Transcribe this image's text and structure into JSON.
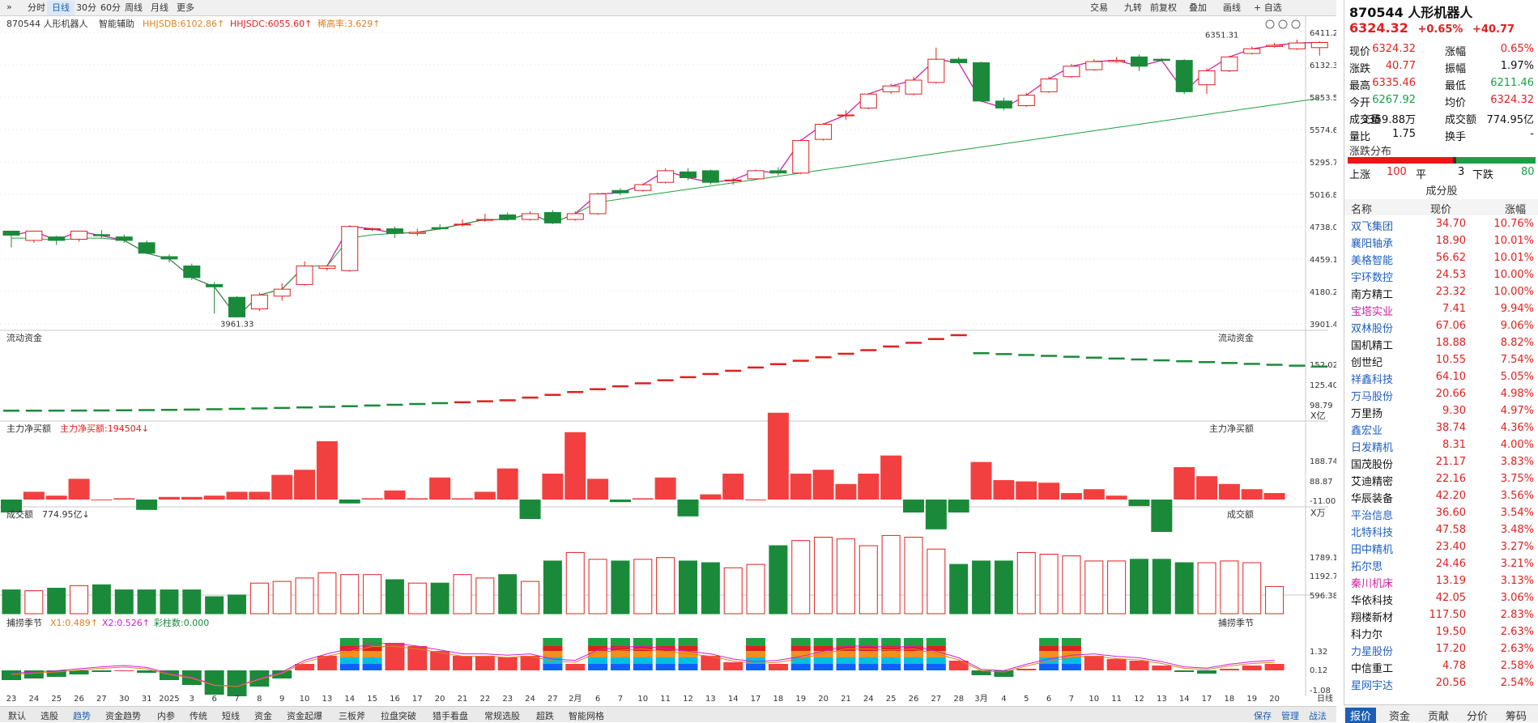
{
  "toolbar": {
    "collapse": "»",
    "left_buttons": [
      "分时",
      "日线",
      "30分",
      "60分",
      "周线",
      "月线",
      "更多"
    ],
    "right_buttons": [
      "交易",
      "九转",
      "前复权",
      "叠加",
      "画线",
      "+ 自选"
    ]
  },
  "main_legend": {
    "name": "870544 人形机器人",
    "assist": "智能辅助",
    "hhjsdb": "HHJSDB:6102.86↑",
    "hhjsdc": "HHJSDC:6055.60↑",
    "rate": "稀高率:3.629↑"
  },
  "main_axis": [
    "6411.24",
    "6132.37",
    "5853.50",
    "5574.63",
    "5295.76",
    "5016.88",
    "4738.01",
    "4459.14",
    "4180.27",
    "3901.40"
  ],
  "annotations": {
    "high": "6351.31",
    "low": "3961.33"
  },
  "panels": {
    "flow": {
      "title": "流动资金",
      "right_title": "流动资金",
      "axis": [
        "152.02",
        "125.40",
        "98.79"
      ],
      "unit": "X亿"
    },
    "net": {
      "title": "主力净买额",
      "legend": "主力净买额:194504↓",
      "right_title": "主力净买额",
      "axis": [
        "188.74",
        "88.87",
        "-11.00"
      ],
      "unit": "X万"
    },
    "vol": {
      "title": "成交额",
      "legend": "774.95亿↓",
      "right_title": "成交额",
      "axis": [
        "1789.15",
        "1192.77",
        "596.38"
      ]
    },
    "season": {
      "title": "捕捞季节",
      "x1": "X1:0.489↑",
      "x2": "X2:0.526↑",
      "bars": "彩柱数:0.000",
      "right_title": "捕捞季节",
      "axis": [
        "1.32",
        "0.12",
        "-1.08"
      ]
    }
  },
  "xaxis": [
    "23",
    "24",
    "25",
    "26",
    "27",
    "30",
    "31",
    "2025",
    "3",
    "6",
    "7",
    "8",
    "9",
    "10",
    "13",
    "14",
    "15",
    "16",
    "17",
    "20",
    "21",
    "22",
    "23",
    "24",
    "27",
    "2月",
    "6",
    "7",
    "10",
    "11",
    "12",
    "13",
    "14",
    "17",
    "18",
    "19",
    "20",
    "21",
    "24",
    "25",
    "26",
    "27",
    "28",
    "3月",
    "4",
    "5",
    "6",
    "7",
    "10",
    "11",
    "12",
    "13",
    "14",
    "17",
    "18",
    "19",
    "20",
    "日线"
  ],
  "chart_data": {
    "type": "candlestick",
    "candles": [
      [
        4700,
        4665,
        4680,
        4560
      ],
      [
        4620,
        4700,
        4660,
        4600
      ],
      [
        4650,
        4620,
        4660,
        4580
      ],
      [
        4630,
        4700,
        4660,
        4610
      ],
      [
        4670,
        4660,
        4710,
        4640
      ],
      [
        4650,
        4620,
        4670,
        4600
      ],
      [
        4600,
        4510,
        4620,
        4500
      ],
      [
        4480,
        4460,
        4500,
        4430
      ],
      [
        4400,
        4300,
        4420,
        4280
      ],
      [
        4240,
        4220,
        4260,
        3990
      ],
      [
        4130,
        3961,
        4140,
        3960
      ],
      [
        4030,
        4150,
        4170,
        4010
      ],
      [
        4140,
        4200,
        4250,
        4100
      ],
      [
        4240,
        4400,
        4440,
        4230
      ],
      [
        4380,
        4400,
        4410,
        4360
      ],
      [
        4360,
        4740,
        4750,
        4350
      ],
      [
        4720,
        4720,
        4730,
        4700
      ],
      [
        4720,
        4680,
        4740,
        4640
      ],
      [
        4680,
        4690,
        4720,
        4660
      ],
      [
        4730,
        4720,
        4760,
        4710
      ],
      [
        4760,
        4760,
        4800,
        4740
      ],
      [
        4800,
        4800,
        4850,
        4780
      ],
      [
        4840,
        4800,
        4860,
        4790
      ],
      [
        4800,
        4850,
        4870,
        4790
      ],
      [
        4860,
        4770,
        4880,
        4760
      ],
      [
        4800,
        4850,
        4870,
        4790
      ],
      [
        4850,
        5020,
        5030,
        4840
      ],
      [
        5050,
        5030,
        5070,
        5010
      ],
      [
        5050,
        5100,
        5110,
        5040
      ],
      [
        5120,
        5220,
        5240,
        5110
      ],
      [
        5210,
        5160,
        5240,
        5140
      ],
      [
        5220,
        5120,
        5230,
        5100
      ],
      [
        5140,
        5140,
        5160,
        5100
      ],
      [
        5150,
        5220,
        5230,
        5140
      ],
      [
        5220,
        5200,
        5250,
        5180
      ],
      [
        5200,
        5480,
        5490,
        5190
      ],
      [
        5490,
        5620,
        5630,
        5480
      ],
      [
        5700,
        5700,
        5740,
        5660
      ],
      [
        5760,
        5880,
        5890,
        5750
      ],
      [
        5900,
        5950,
        5970,
        5880
      ],
      [
        5880,
        6000,
        6030,
        5870
      ],
      [
        5980,
        6180,
        6280,
        5970
      ],
      [
        6180,
        6150,
        6200,
        6140
      ],
      [
        6150,
        5820,
        6160,
        5810
      ],
      [
        5820,
        5760,
        5850,
        5740
      ],
      [
        5780,
        5870,
        5890,
        5770
      ],
      [
        5900,
        6010,
        6030,
        5890
      ],
      [
        6030,
        6120,
        6140,
        6020
      ],
      [
        6090,
        6160,
        6180,
        6080
      ],
      [
        6160,
        6170,
        6200,
        6150
      ],
      [
        6200,
        6120,
        6220,
        6080
      ],
      [
        6180,
        6170,
        6190,
        6160
      ],
      [
        6170,
        5900,
        6180,
        5880
      ],
      [
        5960,
        6080,
        6100,
        5880
      ],
      [
        6080,
        6200,
        6210,
        6070
      ],
      [
        6230,
        6270,
        6290,
        6220
      ],
      [
        6290,
        6300,
        6320,
        6280
      ],
      [
        6270,
        6320,
        6350,
        6260
      ],
      [
        6280,
        6324,
        6336,
        6211
      ]
    ]
  },
  "right": {
    "title": "870544 人形机器人",
    "price": "6324.32",
    "change_pct": "+0.65%",
    "change": "+40.77",
    "stats": [
      [
        "现价",
        "6324.32",
        "red",
        "涨幅",
        "0.65%",
        "red"
      ],
      [
        "涨跌",
        "40.77",
        "red",
        "振幅",
        "1.97%",
        "blk"
      ],
      [
        "最高",
        "6335.46",
        "red",
        "最低",
        "6211.46",
        "grn"
      ],
      [
        "今开",
        "6267.92",
        "grn",
        "均价",
        "6324.32",
        "red"
      ],
      [
        "成交量",
        "3359.88万",
        "blk",
        "成交额",
        "774.95亿",
        "blk"
      ],
      [
        "量比",
        "1.75",
        "blk",
        "换手",
        "-",
        "blk"
      ]
    ],
    "dist_title": "涨跌分布",
    "dist": {
      "up_label": "上涨",
      "up": "100",
      "flat_label": "平",
      "flat": "3",
      "down_label": "下跌",
      "down": "80"
    },
    "comp_title": "成分股",
    "comp_headers": [
      "名称",
      "现价",
      "涨幅"
    ],
    "components": [
      [
        "双飞集团",
        "34.70",
        "10.76%",
        "blu"
      ],
      [
        "襄阳轴承",
        "18.90",
        "10.01%",
        "blu"
      ],
      [
        "美格智能",
        "56.62",
        "10.01%",
        "blu"
      ],
      [
        "宇环数控",
        "24.53",
        "10.00%",
        "blu"
      ],
      [
        "南方精工",
        "23.32",
        "10.00%",
        "blk"
      ],
      [
        "宝塔实业",
        "7.41",
        "9.94%",
        "mag"
      ],
      [
        "双林股份",
        "67.06",
        "9.06%",
        "blu"
      ],
      [
        "国机精工",
        "18.88",
        "8.82%",
        "blk"
      ],
      [
        "创世纪",
        "10.55",
        "7.54%",
        "blk"
      ],
      [
        "祥鑫科技",
        "64.10",
        "5.05%",
        "blu"
      ],
      [
        "万马股份",
        "20.66",
        "4.98%",
        "blu"
      ],
      [
        "万里扬",
        "9.30",
        "4.97%",
        "blk"
      ],
      [
        "鑫宏业",
        "38.74",
        "4.36%",
        "blu"
      ],
      [
        "日发精机",
        "8.31",
        "4.00%",
        "blu"
      ],
      [
        "国茂股份",
        "21.17",
        "3.83%",
        "blk"
      ],
      [
        "艾迪精密",
        "22.16",
        "3.75%",
        "blk"
      ],
      [
        "华辰装备",
        "42.20",
        "3.56%",
        "blk"
      ],
      [
        "平治信息",
        "36.60",
        "3.54%",
        "blu"
      ],
      [
        "北特科技",
        "47.58",
        "3.48%",
        "blu"
      ],
      [
        "田中精机",
        "23.40",
        "3.27%",
        "blu"
      ],
      [
        "拓尔思",
        "24.46",
        "3.21%",
        "blu"
      ],
      [
        "秦川机床",
        "13.19",
        "3.13%",
        "mag"
      ],
      [
        "华依科技",
        "42.05",
        "3.06%",
        "blk"
      ],
      [
        "翔楼新材",
        "117.50",
        "2.83%",
        "blk"
      ],
      [
        "科力尔",
        "19.50",
        "2.63%",
        "blk"
      ],
      [
        "力星股份",
        "17.20",
        "2.63%",
        "blu"
      ],
      [
        "中信重工",
        "4.78",
        "2.58%",
        "blk"
      ],
      [
        "星网宇达",
        "20.56",
        "2.54%",
        "blu"
      ]
    ],
    "tabs": [
      "报价",
      "资金",
      "贡献",
      "分价",
      "筹码"
    ]
  },
  "bottom_tabs": [
    "默认",
    "选股",
    "趋势",
    "资金趋势",
    "内参",
    "传统",
    "短线",
    "资金",
    "资金起爆",
    "三板斧",
    "拉盘突破",
    "猎手看盘",
    "常规选股",
    "超跌",
    "智能网格"
  ],
  "bottom_right": [
    "保存",
    "管理",
    "战法"
  ]
}
